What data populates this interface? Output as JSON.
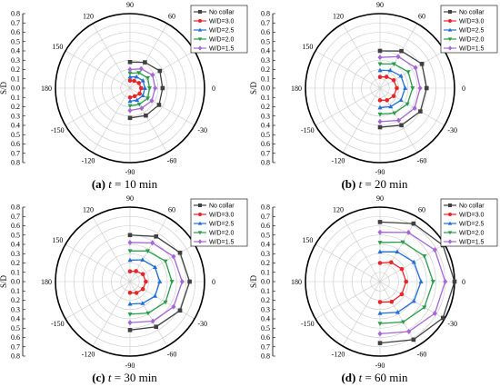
{
  "figure_colors": {
    "grid": "#c9c9c9",
    "outer_ring": "#000000"
  },
  "chart_data": [
    {
      "type": "polar-line",
      "caption_letter": "(a)",
      "caption_var": "t",
      "caption_rest": " = 10 min",
      "ylabel": "S/D",
      "radial_ticks": [
        "0.8",
        "0.7",
        "0.6",
        "0.5",
        "0.4",
        "0.3",
        "0.2",
        "0.1",
        "0.0",
        "0.1",
        "0.2",
        "0.3",
        "0.4",
        "0.5",
        "0.6",
        "0.7",
        "0.8"
      ],
      "angle_labels": [
        "90",
        "60",
        "30",
        "0",
        "-30",
        "-60",
        "-90",
        "-120",
        "-150",
        "180",
        "150",
        "120"
      ],
      "angles_deg": [
        -90,
        -60,
        -30,
        0,
        30,
        60,
        90
      ],
      "rlim": [
        0,
        0.8
      ],
      "series": [
        {
          "name": "No collar",
          "color": "#404040",
          "marker": "square",
          "values": [
            0.32,
            0.34,
            0.36,
            0.35,
            0.37,
            0.32,
            0.28
          ]
        },
        {
          "name": "W/D=3.0",
          "color": "#e8262a",
          "marker": "circle",
          "values": [
            0.1,
            0.1,
            0.12,
            0.12,
            0.11,
            0.09,
            0.08
          ]
        },
        {
          "name": "W/D=2.5",
          "color": "#1f6fd6",
          "marker": "triangle",
          "values": [
            0.14,
            0.15,
            0.16,
            0.16,
            0.16,
            0.14,
            0.12
          ]
        },
        {
          "name": "W/D=2.0",
          "color": "#2a9d4a",
          "marker": "triangle-down",
          "values": [
            0.19,
            0.2,
            0.22,
            0.21,
            0.22,
            0.19,
            0.16
          ]
        },
        {
          "name": "W/D=1.5",
          "color": "#a566d6",
          "marker": "diamond",
          "values": [
            0.24,
            0.25,
            0.27,
            0.27,
            0.28,
            0.24,
            0.2
          ]
        }
      ]
    },
    {
      "type": "polar-line",
      "caption_letter": "(b)",
      "caption_var": "t",
      "caption_rest": " = 20 min",
      "ylabel": "S/D",
      "radial_ticks": [
        "0.8",
        "0.7",
        "0.6",
        "0.5",
        "0.4",
        "0.3",
        "0.2",
        "0.1",
        "0.0",
        "0.1",
        "0.2",
        "0.3",
        "0.4",
        "0.5",
        "0.6",
        "0.7",
        "0.8"
      ],
      "angle_labels": [
        "90",
        "60",
        "30",
        "0",
        "-30",
        "-60",
        "-90",
        "-120",
        "-150",
        "180",
        "150",
        "120"
      ],
      "angles_deg": [
        -90,
        -60,
        -30,
        0,
        30,
        60,
        90
      ],
      "rlim": [
        0,
        0.8
      ],
      "series": [
        {
          "name": "No collar",
          "color": "#404040",
          "marker": "square",
          "values": [
            0.42,
            0.46,
            0.5,
            0.5,
            0.52,
            0.46,
            0.4
          ]
        },
        {
          "name": "W/D=3.0",
          "color": "#e8262a",
          "marker": "circle",
          "values": [
            0.13,
            0.15,
            0.17,
            0.18,
            0.17,
            0.14,
            0.12
          ]
        },
        {
          "name": "W/D=2.5",
          "color": "#1f6fd6",
          "marker": "triangle",
          "values": [
            0.21,
            0.23,
            0.26,
            0.27,
            0.26,
            0.22,
            0.19
          ]
        },
        {
          "name": "W/D=2.0",
          "color": "#2a9d4a",
          "marker": "triangle-down",
          "values": [
            0.28,
            0.31,
            0.34,
            0.35,
            0.35,
            0.3,
            0.26
          ]
        },
        {
          "name": "W/D=1.5",
          "color": "#a566d6",
          "marker": "diamond",
          "values": [
            0.36,
            0.4,
            0.43,
            0.43,
            0.44,
            0.39,
            0.33
          ]
        }
      ]
    },
    {
      "type": "polar-line",
      "caption_letter": "(c)",
      "caption_var": "t",
      "caption_rest": " = 30 min",
      "ylabel": "S/D",
      "radial_ticks": [
        "0.8",
        "0.7",
        "0.6",
        "0.5",
        "0.4",
        "0.3",
        "0.2",
        "0.1",
        "0.0",
        "0.1",
        "0.2",
        "0.3",
        "0.4",
        "0.5",
        "0.6",
        "0.7",
        "0.8"
      ],
      "angle_labels": [
        "90",
        "60",
        "30",
        "0",
        "-30",
        "-60",
        "-90",
        "-120",
        "-150",
        "180",
        "150",
        "120"
      ],
      "angles_deg": [
        -90,
        -60,
        -30,
        0,
        30,
        60,
        90
      ],
      "rlim": [
        0,
        0.8
      ],
      "series": [
        {
          "name": "No collar",
          "color": "#404040",
          "marker": "square",
          "values": [
            0.52,
            0.56,
            0.62,
            0.64,
            0.62,
            0.56,
            0.5
          ]
        },
        {
          "name": "W/D=3.0",
          "color": "#e8262a",
          "marker": "circle",
          "values": [
            0.12,
            0.14,
            0.16,
            0.17,
            0.16,
            0.13,
            0.11
          ]
        },
        {
          "name": "W/D=2.5",
          "color": "#1f6fd6",
          "marker": "triangle",
          "values": [
            0.24,
            0.27,
            0.31,
            0.32,
            0.31,
            0.27,
            0.23
          ]
        },
        {
          "name": "W/D=2.0",
          "color": "#2a9d4a",
          "marker": "triangle-down",
          "values": [
            0.35,
            0.39,
            0.44,
            0.45,
            0.44,
            0.38,
            0.33
          ]
        },
        {
          "name": "W/D=1.5",
          "color": "#a566d6",
          "marker": "diamond",
          "values": [
            0.44,
            0.49,
            0.54,
            0.56,
            0.54,
            0.48,
            0.42
          ]
        }
      ]
    },
    {
      "type": "polar-line",
      "caption_letter": "(d)",
      "caption_var": "t",
      "caption_rest": " = 60 min",
      "ylabel": "S/D",
      "radial_ticks": [
        "0.8",
        "0.7",
        "0.6",
        "0.5",
        "0.4",
        "0.3",
        "0.2",
        "0.1",
        "0.0",
        "0.1",
        "0.2",
        "0.3",
        "0.4",
        "0.5",
        "0.6",
        "0.7",
        "0.8"
      ],
      "angle_labels": [
        "90",
        "60",
        "30",
        "0",
        "-30",
        "-60",
        "-90",
        "-120",
        "-150",
        "180",
        "150",
        "120"
      ],
      "angles_deg": [
        -90,
        -60,
        -30,
        0,
        30,
        60,
        90
      ],
      "rlim": [
        0,
        0.8
      ],
      "series": [
        {
          "name": "No collar",
          "color": "#404040",
          "marker": "square",
          "values": [
            0.66,
            0.72,
            0.78,
            0.8,
            0.78,
            0.72,
            0.64
          ]
        },
        {
          "name": "W/D=3.0",
          "color": "#e8262a",
          "marker": "circle",
          "values": [
            0.22,
            0.25,
            0.27,
            0.28,
            0.27,
            0.24,
            0.2
          ]
        },
        {
          "name": "W/D=2.5",
          "color": "#1f6fd6",
          "marker": "triangle",
          "values": [
            0.34,
            0.38,
            0.42,
            0.44,
            0.42,
            0.37,
            0.32
          ]
        },
        {
          "name": "W/D=2.0",
          "color": "#2a9d4a",
          "marker": "triangle-down",
          "values": [
            0.45,
            0.5,
            0.55,
            0.57,
            0.55,
            0.49,
            0.42
          ]
        },
        {
          "name": "W/D=1.5",
          "color": "#a566d6",
          "marker": "diamond",
          "values": [
            0.56,
            0.62,
            0.68,
            0.7,
            0.68,
            0.61,
            0.53
          ]
        }
      ]
    }
  ]
}
